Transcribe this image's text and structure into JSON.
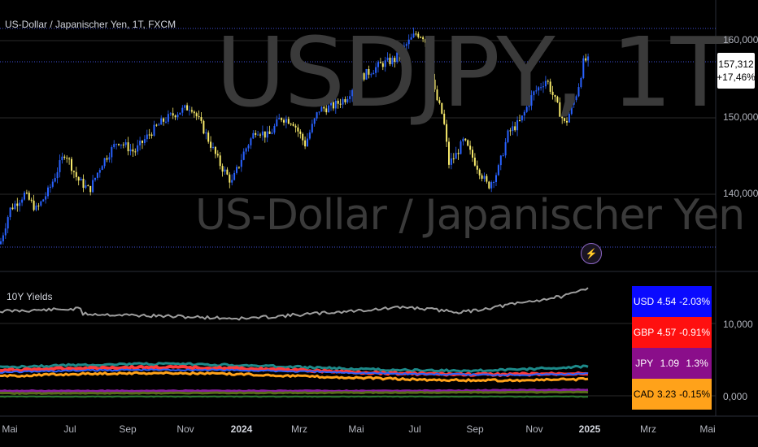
{
  "symbol_title": "US-Dollar / Japanischer Yen, 1T, FXCM",
  "watermark_symbol": "USDJPY, 1T",
  "watermark_name": "US-Dollar / Japanischer Yen",
  "price_axis": [
    "160,000",
    "150,000",
    "140,000"
  ],
  "last_price": "157,312",
  "last_change": "+17,46%",
  "pane2": {
    "title": "10Y Yields",
    "axis_labels": [
      "10,000",
      "0,000"
    ]
  },
  "time_axis": [
    "Mai",
    "Jul",
    "Sep",
    "Nov",
    "2024",
    "Mrz",
    "Mai",
    "Jul",
    "Sep",
    "Nov",
    "2025",
    "Mrz",
    "Mai"
  ],
  "time_axis_bold": [
    "2024",
    "2025"
  ],
  "yields_table": [
    {
      "code": "USD",
      "yield": "4.54",
      "change": "-2.03%",
      "color": "#0a0aff"
    },
    {
      "code": "GBP",
      "yield": "4.57",
      "change": "-0.91%",
      "color": "#ff1010"
    },
    {
      "code": "JPY",
      "yield": "1.09",
      "change": "1.3%",
      "color": "#8a0e8a"
    },
    {
      "code": "CAD",
      "yield": "3.23",
      "change": "-0.15%",
      "color": "#ffa21a"
    }
  ],
  "colors": {
    "candle_up": "#2962ff",
    "candle_down": "#f6e96b",
    "yield_index": "#9e9e9e",
    "teal": "#1d8a8a",
    "red": "#ff3b3b",
    "orange": "#ffa21a",
    "purple": "#8a1ea0",
    "olive": "#5a6b1a",
    "green": "#2e7d32"
  },
  "icons": {
    "flash": "lightning-icon"
  },
  "chart_data": {
    "type": "line",
    "title": "US-Dollar / Japanischer Yen, 1T, FXCM",
    "x": [
      "2023-05",
      "2023-07",
      "2023-09",
      "2023-11",
      "2024-01",
      "2024-03",
      "2024-05",
      "2024-07",
      "2024-09",
      "2024-11",
      "2025-01"
    ],
    "series": [
      {
        "name": "USDJPY",
        "values": [
          135.0,
          144.5,
          147.0,
          151.0,
          142.0,
          150.5,
          157.0,
          161.5,
          142.5,
          154.0,
          157.312
        ]
      }
    ],
    "ylim": [
      131,
      163
    ],
    "grid": true
  }
}
